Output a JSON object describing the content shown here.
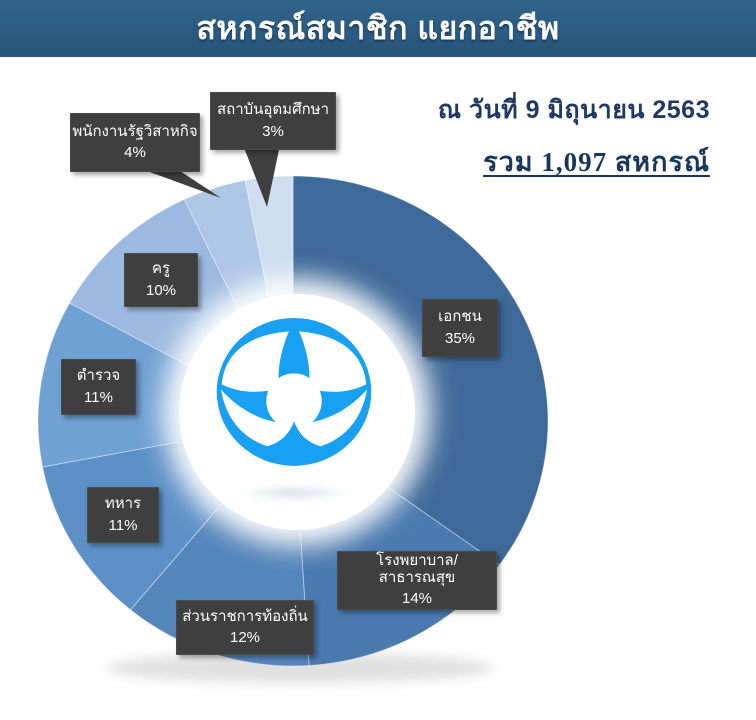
{
  "header": {
    "title": "สหกรณ์สมาชิก แยกอาชีพ",
    "band_color": "#27547A"
  },
  "meta": {
    "as_of_label": "ณ วันที่ 9 มิถุนายน 2563",
    "total_label": "รวม 1,097 สหกรณ์",
    "text_color": "#1F3864"
  },
  "logo": {
    "name": "cooperative-logo",
    "color": "#18A0F2"
  },
  "chart_data": {
    "type": "pie",
    "title": "สหกรณ์สมาชิก แยกอาชีพ",
    "subtitle": "ณ วันที่ 9 มิถุนายน 2563",
    "total_note": "รวม 1,097 สหกรณ์",
    "unit": "%",
    "donut": true,
    "start_angle_deg": -90,
    "direction": "clockwise",
    "legend_position": "callouts-on-slices",
    "categories": [
      "เอกชน",
      "โรงพยาบาล/สาธารณสุข",
      "ส่วนราชการท้องถิ่น",
      "ทหาร",
      "ตำรวจ",
      "ครู",
      "พนักงานรัฐวิสาหกิจ",
      "สถาบันอุดมศึกษา"
    ],
    "values": [
      35,
      14,
      12,
      11,
      11,
      10,
      4,
      3
    ],
    "colors": [
      "#3E6A99",
      "#4A7AAF",
      "#5486BC",
      "#5C90C7",
      "#70A1D3",
      "#9CBAE0",
      "#AFC7E7",
      "#CEDDF0"
    ]
  },
  "callouts": [
    {
      "label": "เอกชน",
      "pct": "35%"
    },
    {
      "label": "โรงพยาบาล/สาธารณสุข",
      "pct": "14%"
    },
    {
      "label": "ส่วนราชการท้องถิ่น",
      "pct": "12%"
    },
    {
      "label": "ทหาร",
      "pct": "11%"
    },
    {
      "label": "ตำรวจ",
      "pct": "11%"
    },
    {
      "label": "ครู",
      "pct": "10%"
    },
    {
      "label": "พนักงานรัฐวิสาหกิจ",
      "pct": "4%"
    },
    {
      "label": "สถาบันอุดมศึกษา",
      "pct": "3%"
    }
  ]
}
